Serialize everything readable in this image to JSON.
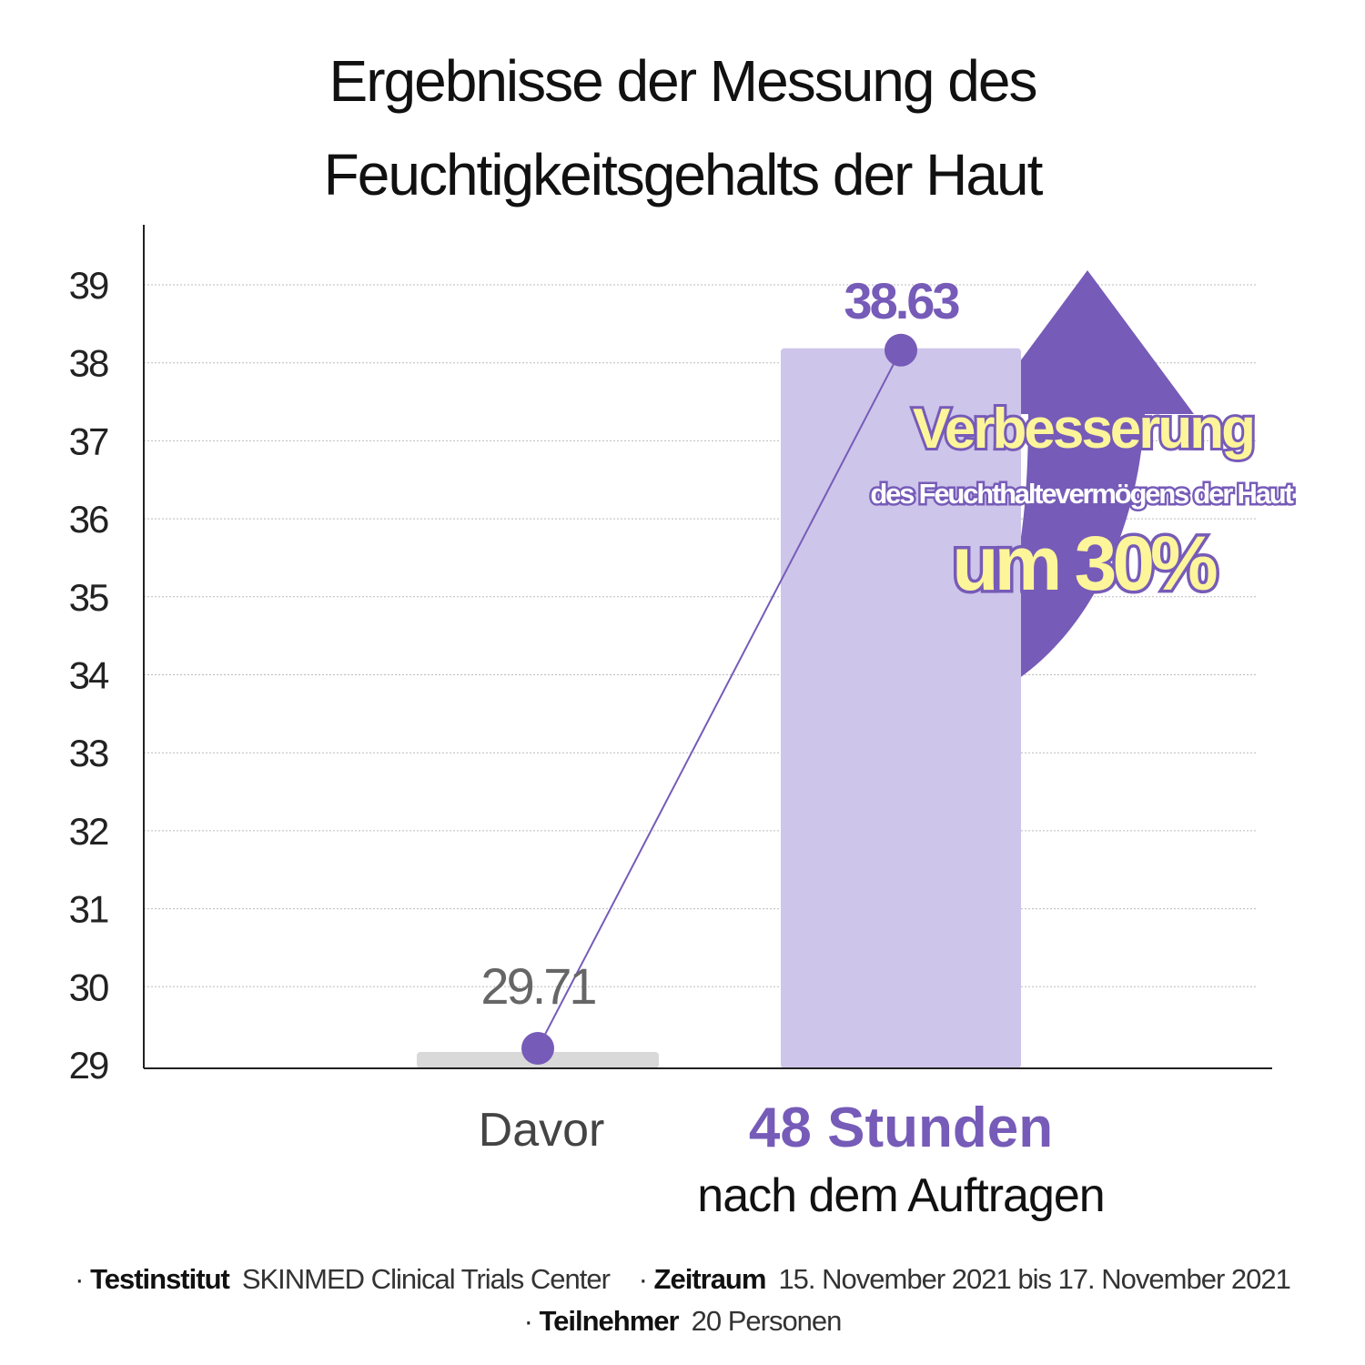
{
  "chart_data": {
    "type": "bar",
    "title": "Ergebnisse der Messung des Feuchtigkeitsgehalts der Haut",
    "title_lines": [
      "Ergebnisse der Messung des",
      "Feuchtigkeitsgehalts der Haut"
    ],
    "categories": [
      "Davor",
      "48 Stunden nach dem Auftragen"
    ],
    "category_lines": [
      [
        "Davor"
      ],
      [
        "48 Stunden",
        "nach dem Auftragen"
      ]
    ],
    "values": [
      29.71,
      38.63
    ],
    "data_labels": [
      "29.71",
      "38.63"
    ],
    "ylim": [
      29,
      39
    ],
    "yticks": [
      29,
      30,
      31,
      32,
      33,
      34,
      35,
      36,
      37,
      38,
      39
    ],
    "grid": true,
    "overlay": "connecting line with markers",
    "colors": {
      "bar_before": "#d9d9d9",
      "bar_after": "#cdc5ea",
      "accent": "#765bb8",
      "highlight_text": "#fdf59a",
      "label_before": "#666666"
    },
    "annotation": {
      "line1": "Verbesserung",
      "line2": "des Feuchthaltevermögens der Haut",
      "line3": "um 30%",
      "icon": "curved-up-arrow"
    }
  },
  "footer": {
    "items": [
      {
        "label": "Testinstitut",
        "value": "SKINMED Clinical Trials Center"
      },
      {
        "label": "Zeitraum",
        "value": "15. November 2021 bis 17. November 2021"
      },
      {
        "label": "Teilnehmer",
        "value": "20 Personen"
      }
    ],
    "bullet": "·"
  }
}
